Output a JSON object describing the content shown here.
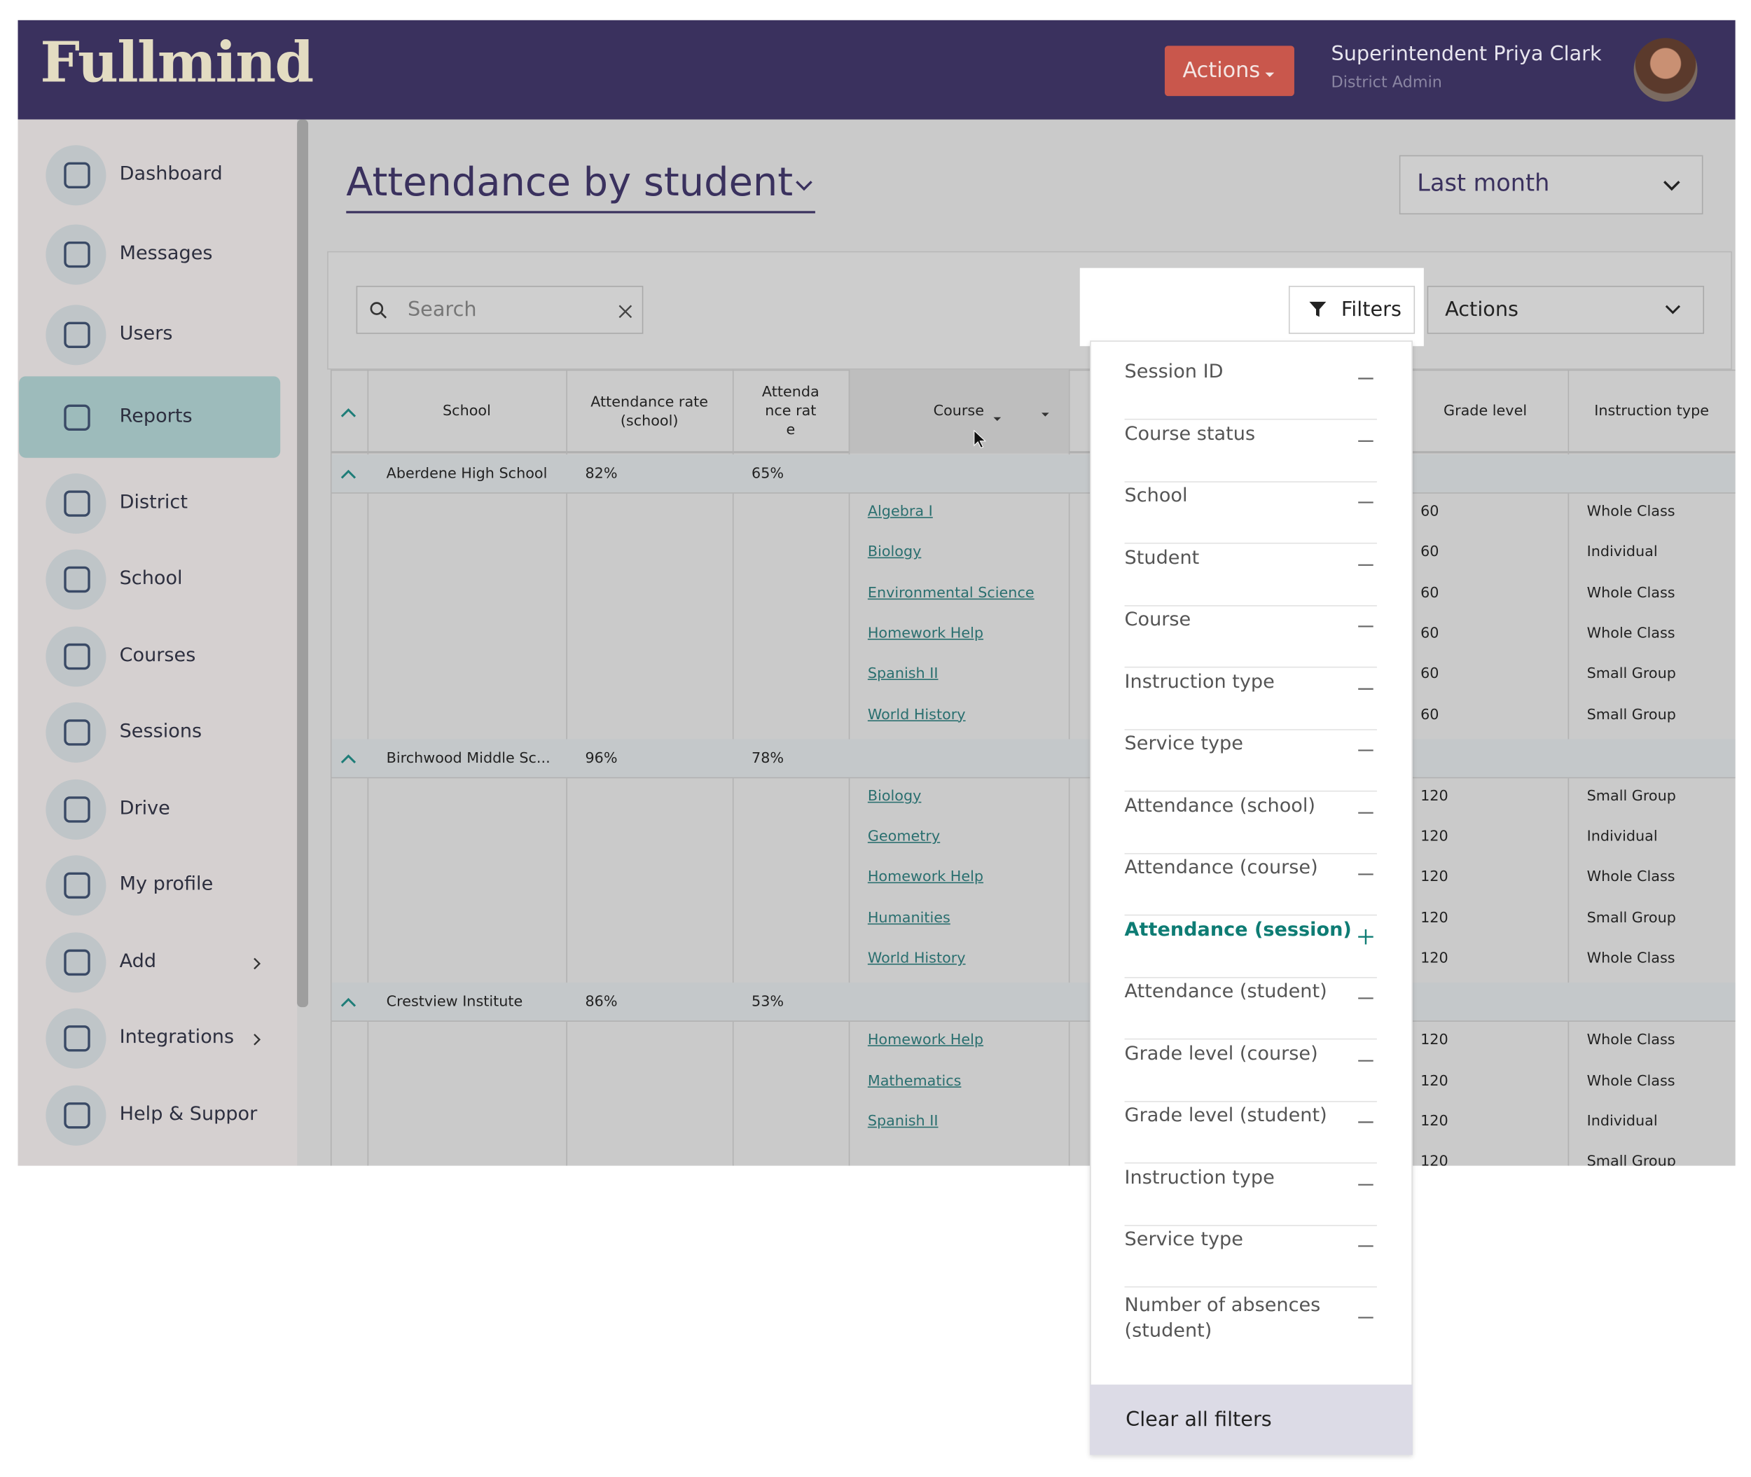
{
  "header": {
    "logo": "Fullmind",
    "actions": "Actions",
    "user_name": "Superintendent Priya Clark",
    "user_role": "District Admin"
  },
  "sidebar": {
    "items": [
      "Dashboard",
      "Messages",
      "Users",
      "Reports",
      "District",
      "School",
      "Courses",
      "Sessions",
      "Drive",
      "My profile",
      "Add",
      "Integrations",
      "Help & Suppor"
    ],
    "active": "Reports"
  },
  "page": {
    "title": "Attendance by student",
    "date_range": "Last month"
  },
  "toolbar": {
    "search_placeholder": "Search",
    "filters": "Filters",
    "actions": "Actions"
  },
  "table": {
    "columns": [
      "School",
      "Attendance rate (school)",
      "Attendance rate",
      "Course",
      "Grade level",
      "Instruction type"
    ],
    "groups": [
      {
        "school": "Aberdene High School",
        "school_rate": "82%",
        "rate": "65%",
        "rows": [
          [
            "Algebra I",
            "60",
            "Whole Class"
          ],
          [
            "Biology",
            "60",
            "Individual"
          ],
          [
            "Environmental Science",
            "60",
            "Whole Class"
          ],
          [
            "Homework Help",
            "60",
            "Whole Class"
          ],
          [
            "Spanish II",
            "60",
            "Small Group"
          ],
          [
            "World History",
            "60",
            "Small Group"
          ]
        ]
      },
      {
        "school": "Birchwood Middle Sc...",
        "school_rate": "96%",
        "rate": "78%",
        "rows": [
          [
            "Biology",
            "120",
            "Small Group"
          ],
          [
            "Geometry",
            "120",
            "Individual"
          ],
          [
            "Homework Help",
            "120",
            "Whole Class"
          ],
          [
            "Humanities",
            "120",
            "Small Group"
          ],
          [
            "World History",
            "120",
            "Whole Class"
          ]
        ]
      },
      {
        "school": "Crestview Institute",
        "school_rate": "86%",
        "rate": "53%",
        "rows": [
          [
            "Homework Help",
            "120",
            "Whole Class"
          ],
          [
            "Mathematics",
            "120",
            "Whole Class"
          ],
          [
            "Spanish II",
            "120",
            "Individual"
          ],
          [
            "",
            "120",
            "Small Group"
          ]
        ]
      }
    ]
  },
  "filters": {
    "items": [
      {
        "label": "Session ID",
        "active": false
      },
      {
        "label": "Course status",
        "active": false
      },
      {
        "label": "School",
        "active": false
      },
      {
        "label": "Student",
        "active": false
      },
      {
        "label": "Course",
        "active": false
      },
      {
        "label": "Instruction type",
        "active": false
      },
      {
        "label": "Service type",
        "active": false
      },
      {
        "label": "Attendance (school)",
        "active": false
      },
      {
        "label": "Attendance (course)",
        "active": false
      },
      {
        "label": "Attendance (session)",
        "active": true
      },
      {
        "label": "Attendance (student)",
        "active": false
      },
      {
        "label": "Grade level (course)",
        "active": false
      },
      {
        "label": "Grade level (student)",
        "active": false
      },
      {
        "label": "Instruction type",
        "active": false
      },
      {
        "label": "Service type",
        "active": false
      },
      {
        "label": "Number of absences (student)",
        "active": false
      }
    ],
    "clear": "Clear all filters"
  }
}
